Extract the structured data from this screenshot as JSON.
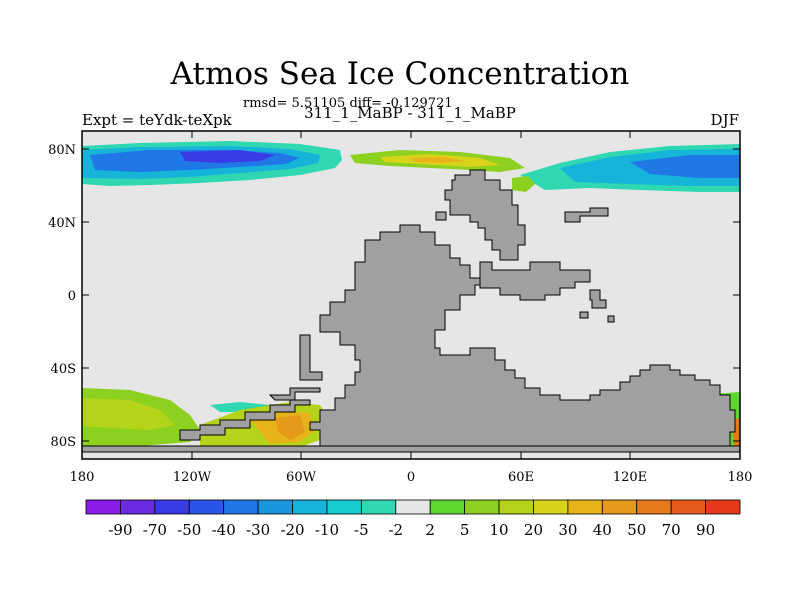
{
  "title": "Atmos Sea Ice Concentration",
  "stats_line": "rmsd= 5.51105  diff= -0.129721",
  "left_label": "Expt = teYdk-teXpk",
  "center_label": "311_1_MaBP - 311_1_MaBP",
  "right_label": "DJF",
  "map": {
    "projection": "cylindrical equidistant",
    "lon_range": [
      -180,
      180
    ],
    "lat_range": [
      -90,
      90
    ],
    "land_color": "#a0a0a0",
    "ocean_missing_color": "#e6e6e6"
  },
  "lat_ticks": [
    "80N",
    "40N",
    "0",
    "40S",
    "80S"
  ],
  "lon_ticks": [
    "180",
    "120W",
    "60W",
    "0",
    "60E",
    "120E",
    "180"
  ],
  "colorbar": {
    "levels": [
      "-90",
      "-70",
      "-50",
      "-40",
      "-30",
      "-20",
      "-10",
      "-5",
      "-2",
      "2",
      "5",
      "10",
      "20",
      "30",
      "40",
      "50",
      "70",
      "90"
    ],
    "colors": [
      "#8a1ee8",
      "#6a2ae0",
      "#3a3ae6",
      "#2a55e6",
      "#1f78e6",
      "#1a96e0",
      "#16b4d8",
      "#14cccc",
      "#2fd8b0",
      "#e6e6e6",
      "#5ed630",
      "#8cd020",
      "#b4d41a",
      "#d8d41a",
      "#e6b41a",
      "#e69a1a",
      "#e67a1a",
      "#e65a1a",
      "#e63a1a"
    ]
  }
}
